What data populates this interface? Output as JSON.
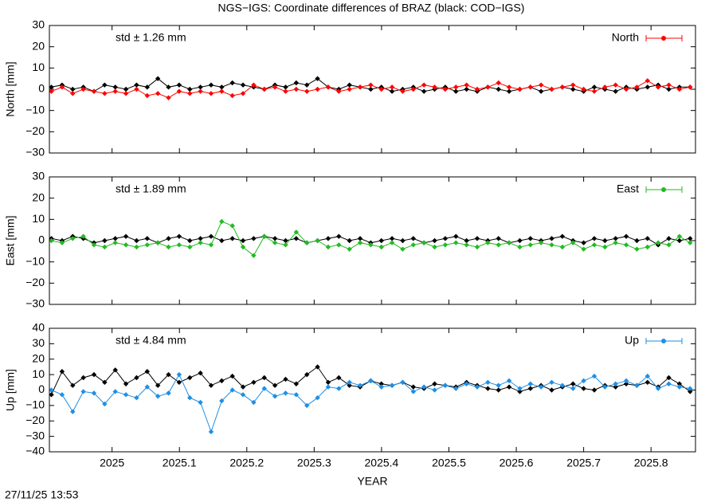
{
  "title": "NGS−IGS: Coordinate differences of BRAZ (black: COD−IGS)",
  "timestamp": "27/11/25 13:53",
  "chart_data": [
    {
      "type": "line",
      "ylabel": "North [mm]",
      "annotation": "std ± 1.26 mm",
      "annotation_color": "#ff0000",
      "xlim": [
        2024.907,
        2025.866
      ],
      "ylim": [
        -30,
        30
      ],
      "yticks": [
        {
          "value": -30,
          "label": "−30"
        },
        {
          "value": -20,
          "label": "−20"
        },
        {
          "value": -10,
          "label": "−10"
        },
        0,
        10,
        20,
        30
      ],
      "x": [
        2024.91,
        2024.9258,
        2024.9416,
        2024.9574,
        2024.9732,
        2024.989,
        2025.0048,
        2025.0206,
        2025.0364,
        2025.0522,
        2025.068,
        2025.0838,
        2025.0996,
        2025.1154,
        2025.1312,
        2025.147,
        2025.1628,
        2025.1786,
        2025.1944,
        2025.2102,
        2025.226,
        2025.2418,
        2025.2576,
        2025.2734,
        2025.2892,
        2025.305,
        2025.3208,
        2025.3366,
        2025.3524,
        2025.3682,
        2025.384,
        2025.3998,
        2025.4156,
        2025.4314,
        2025.4472,
        2025.463,
        2025.4788,
        2025.4946,
        2025.5104,
        2025.5262,
        2025.542,
        2025.5578,
        2025.5736,
        2025.5894,
        2025.6052,
        2025.621,
        2025.6368,
        2025.6526,
        2025.6684,
        2025.6842,
        2025.7,
        2025.7158,
        2025.7316,
        2025.7474,
        2025.7632,
        2025.779,
        2025.7948,
        2025.8106,
        2025.8264,
        2025.8422,
        2025.858
      ],
      "series": [
        {
          "color": "#000000",
          "values": [
            1,
            2,
            0,
            1,
            -1,
            2,
            1,
            0,
            2,
            1,
            5,
            1,
            2,
            0,
            1,
            2,
            1,
            3,
            2,
            1,
            0,
            2,
            1,
            3,
            2,
            5,
            1,
            0,
            2,
            1,
            0,
            1,
            -1,
            0,
            1,
            -1,
            0,
            1,
            -1,
            0,
            -1,
            1,
            0,
            -1,
            0,
            1,
            -1,
            0,
            1,
            0,
            -1,
            1,
            0,
            -1,
            1,
            0,
            1,
            2,
            0,
            1,
            1
          ]
        },
        {
          "name": "North",
          "color": "#ff0000",
          "values": [
            -1,
            1,
            -2,
            0,
            -1,
            -2,
            -1,
            -2,
            0,
            -3,
            -2,
            -4,
            -1,
            -2,
            -1,
            -2,
            -1,
            -3,
            -2,
            2,
            0,
            1,
            -1,
            0,
            -1,
            0,
            1,
            -1,
            0,
            1,
            2,
            0,
            1,
            -1,
            0,
            2,
            1,
            0,
            1,
            2,
            0,
            1,
            3,
            1,
            0,
            1,
            2,
            0,
            1,
            2,
            0,
            -1,
            1,
            2,
            0,
            1,
            4,
            1,
            2,
            0,
            1
          ]
        }
      ]
    },
    {
      "type": "line",
      "ylabel": "East [mm]",
      "annotation": "std ± 1.89 mm",
      "annotation_color": "#22bb22",
      "xlim": [
        2024.907,
        2025.866
      ],
      "ylim": [
        -30,
        30
      ],
      "yticks": [
        {
          "value": -30,
          "label": "−30"
        },
        {
          "value": -20,
          "label": "−20"
        },
        {
          "value": -10,
          "label": "−10"
        },
        0,
        10,
        20,
        30
      ],
      "x": [
        2024.91,
        2024.9258,
        2024.9416,
        2024.9574,
        2024.9732,
        2024.989,
        2025.0048,
        2025.0206,
        2025.0364,
        2025.0522,
        2025.068,
        2025.0838,
        2025.0996,
        2025.1154,
        2025.1312,
        2025.147,
        2025.1628,
        2025.1786,
        2025.1944,
        2025.2102,
        2025.226,
        2025.2418,
        2025.2576,
        2025.2734,
        2025.2892,
        2025.305,
        2025.3208,
        2025.3366,
        2025.3524,
        2025.3682,
        2025.384,
        2025.3998,
        2025.4156,
        2025.4314,
        2025.4472,
        2025.463,
        2025.4788,
        2025.4946,
        2025.5104,
        2025.5262,
        2025.542,
        2025.5578,
        2025.5736,
        2025.5894,
        2025.6052,
        2025.621,
        2025.6368,
        2025.6526,
        2025.6684,
        2025.6842,
        2025.7,
        2025.7158,
        2025.7316,
        2025.7474,
        2025.7632,
        2025.779,
        2025.7948,
        2025.8106,
        2025.8264,
        2025.8422,
        2025.858
      ],
      "series": [
        {
          "color": "#000000",
          "values": [
            1,
            0,
            2,
            1,
            -1,
            0,
            1,
            2,
            0,
            1,
            -1,
            1,
            2,
            0,
            1,
            2,
            0,
            1,
            0,
            1,
            2,
            1,
            0,
            1,
            -1,
            0,
            1,
            2,
            0,
            1,
            -1,
            0,
            1,
            0,
            1,
            -1,
            0,
            1,
            2,
            0,
            1,
            0,
            1,
            -1,
            0,
            1,
            0,
            1,
            2,
            0,
            -1,
            1,
            0,
            1,
            2,
            0,
            1,
            -2,
            1,
            0,
            1
          ]
        },
        {
          "name": "East",
          "color": "#22bb22",
          "values": [
            0,
            -1,
            1,
            2,
            -2,
            -3,
            -1,
            -2,
            -3,
            -2,
            -1,
            -3,
            -2,
            -3,
            -1,
            -2,
            9,
            7,
            -3,
            -7,
            2,
            -1,
            -2,
            4,
            -1,
            0,
            -3,
            -2,
            -4,
            -1,
            -2,
            -3,
            -1,
            -4,
            -2,
            -1,
            -3,
            -2,
            -1,
            -2,
            -3,
            -1,
            -2,
            -1,
            -3,
            -2,
            -1,
            -2,
            -3,
            -1,
            -4,
            -2,
            -3,
            -1,
            -2,
            -4,
            -3,
            -1,
            -2,
            2,
            -1
          ]
        }
      ]
    },
    {
      "type": "line",
      "ylabel": "Up [mm]",
      "xlabel": "YEAR",
      "annotation": "std ± 4.84 mm",
      "annotation_color": "#1e8fe6",
      "xlim": [
        2024.907,
        2025.866
      ],
      "ylim": [
        -40,
        40
      ],
      "xticks": [
        2025,
        2025.1,
        2025.2,
        2025.3,
        2025.4,
        2025.5,
        2025.6,
        2025.7,
        2025.8
      ],
      "yticks": [
        {
          "value": -40,
          "label": "−40"
        },
        {
          "value": -30,
          "label": "−30"
        },
        {
          "value": -20,
          "label": "−20"
        },
        {
          "value": -10,
          "label": "−10"
        },
        0,
        10,
        20,
        30,
        40
      ],
      "x": [
        2024.91,
        2024.9258,
        2024.9416,
        2024.9574,
        2024.9732,
        2024.989,
        2025.0048,
        2025.0206,
        2025.0364,
        2025.0522,
        2025.068,
        2025.0838,
        2025.0996,
        2025.1154,
        2025.1312,
        2025.147,
        2025.1628,
        2025.1786,
        2025.1944,
        2025.2102,
        2025.226,
        2025.2418,
        2025.2576,
        2025.2734,
        2025.2892,
        2025.305,
        2025.3208,
        2025.3366,
        2025.3524,
        2025.3682,
        2025.384,
        2025.3998,
        2025.4156,
        2025.4314,
        2025.4472,
        2025.463,
        2025.4788,
        2025.4946,
        2025.5104,
        2025.5262,
        2025.542,
        2025.5578,
        2025.5736,
        2025.5894,
        2025.6052,
        2025.621,
        2025.6368,
        2025.6526,
        2025.6684,
        2025.6842,
        2025.7,
        2025.7158,
        2025.7316,
        2025.7474,
        2025.7632,
        2025.779,
        2025.7948,
        2025.8106,
        2025.8264,
        2025.8422,
        2025.858
      ],
      "series": [
        {
          "color": "#000000",
          "values": [
            -3,
            12,
            3,
            8,
            10,
            5,
            13,
            4,
            8,
            12,
            3,
            10,
            5,
            8,
            11,
            3,
            6,
            9,
            2,
            5,
            8,
            3,
            7,
            4,
            10,
            15,
            5,
            8,
            3,
            2,
            6,
            4,
            3,
            5,
            2,
            1,
            4,
            3,
            2,
            5,
            3,
            1,
            0,
            2,
            -1,
            1,
            3,
            0,
            2,
            4,
            1,
            0,
            3,
            2,
            4,
            3,
            5,
            2,
            8,
            4,
            -1
          ]
        },
        {
          "name": "Up",
          "color": "#1e8fe6",
          "values": [
            0,
            -3,
            -14,
            -1,
            -2,
            -9,
            -1,
            -3,
            -5,
            2,
            -4,
            -2,
            10,
            -5,
            -8,
            -27,
            -7,
            0,
            -3,
            -8,
            1,
            -4,
            -2,
            -3,
            -10,
            -5,
            2,
            1,
            5,
            3,
            6,
            2,
            3,
            5,
            -1,
            2,
            0,
            3,
            1,
            4,
            2,
            5,
            3,
            6,
            1,
            4,
            2,
            5,
            3,
            1,
            6,
            9,
            2,
            4,
            6,
            3,
            9,
            1,
            4,
            2,
            1
          ]
        }
      ]
    }
  ]
}
